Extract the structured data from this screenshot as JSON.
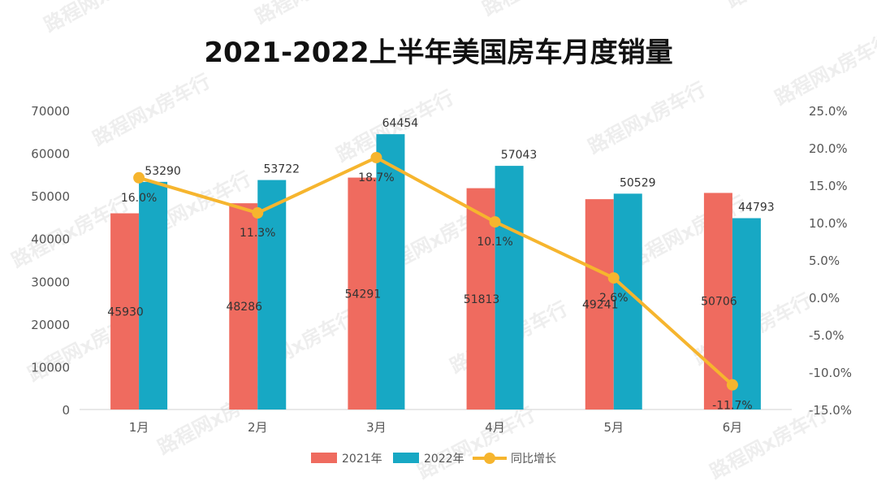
{
  "watermark": "路程网x房车行",
  "chart_data": {
    "type": "bar",
    "title": "2021-2022上半年美国房车月度销量",
    "categories": [
      "1月",
      "2月",
      "3月",
      "4月",
      "5月",
      "6月"
    ],
    "series": [
      {
        "name": "2021年",
        "type": "bar",
        "axis": "left",
        "color": "#ef6b5f",
        "values": [
          45930,
          48286,
          54291,
          51813,
          49241,
          50706
        ]
      },
      {
        "name": "2022年",
        "type": "bar",
        "axis": "left",
        "color": "#17a8c4",
        "values": [
          53290,
          53722,
          64454,
          57043,
          50529,
          44793
        ]
      },
      {
        "name": "同比增长",
        "type": "line",
        "axis": "right",
        "color": "#f6b52e",
        "values": [
          16.0,
          11.3,
          18.7,
          10.1,
          2.6,
          -11.7
        ],
        "labels": [
          "16.0%",
          "11.3%",
          "18.7%",
          "10.1%",
          "2.6%",
          "-11.7%"
        ]
      }
    ],
    "y_left": {
      "min": 0,
      "max": 70000,
      "ticks": [
        "0",
        "10000",
        "20000",
        "30000",
        "40000",
        "50000",
        "60000",
        "70000"
      ]
    },
    "y_right": {
      "min": -15,
      "max": 25,
      "ticks": [
        "-15.0%",
        "-10.0%",
        "-5.0%",
        "0.0%",
        "5.0%",
        "10.0%",
        "15.0%",
        "20.0%",
        "25.0%"
      ]
    },
    "legend_position": "bottom-center",
    "grid": false
  }
}
